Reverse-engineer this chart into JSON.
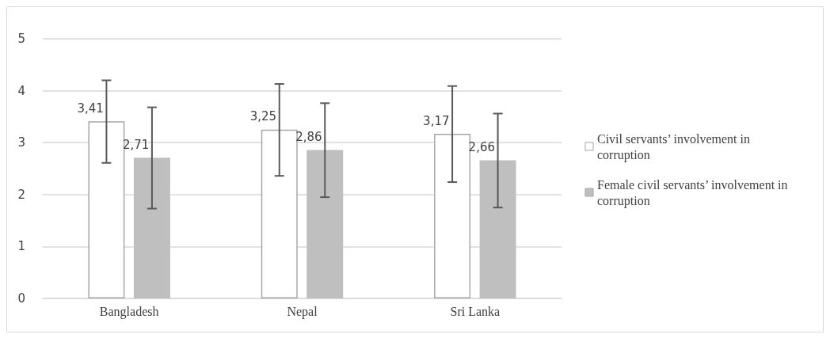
{
  "chart_data": {
    "type": "bar",
    "categories": [
      "Bangladesh",
      "Nepal",
      "Sri Lanka"
    ],
    "series": [
      {
        "name": "Civil servants’ involvement in corruption",
        "color": "#ffffff",
        "values": [
          3.41,
          3.25,
          3.17
        ],
        "value_labels": [
          "3,41",
          "3,25",
          "3,17"
        ],
        "errors": [
          [
            2.61,
            4.2
          ],
          [
            2.36,
            4.13
          ],
          [
            2.24,
            4.09
          ]
        ]
      },
      {
        "name": "Female civil servants’ involvement in corruption",
        "color": "#bfbfbf",
        "values": [
          2.71,
          2.86,
          2.66
        ],
        "value_labels": [
          "2,71",
          "2,86",
          "2,66"
        ],
        "errors": [
          [
            1.73,
            3.68
          ],
          [
            1.95,
            3.76
          ],
          [
            1.75,
            3.56
          ]
        ]
      }
    ],
    "ylim": [
      0,
      5
    ],
    "yticks": [
      0,
      1,
      2,
      3,
      4,
      5
    ],
    "grid": "y",
    "legend": "right"
  }
}
